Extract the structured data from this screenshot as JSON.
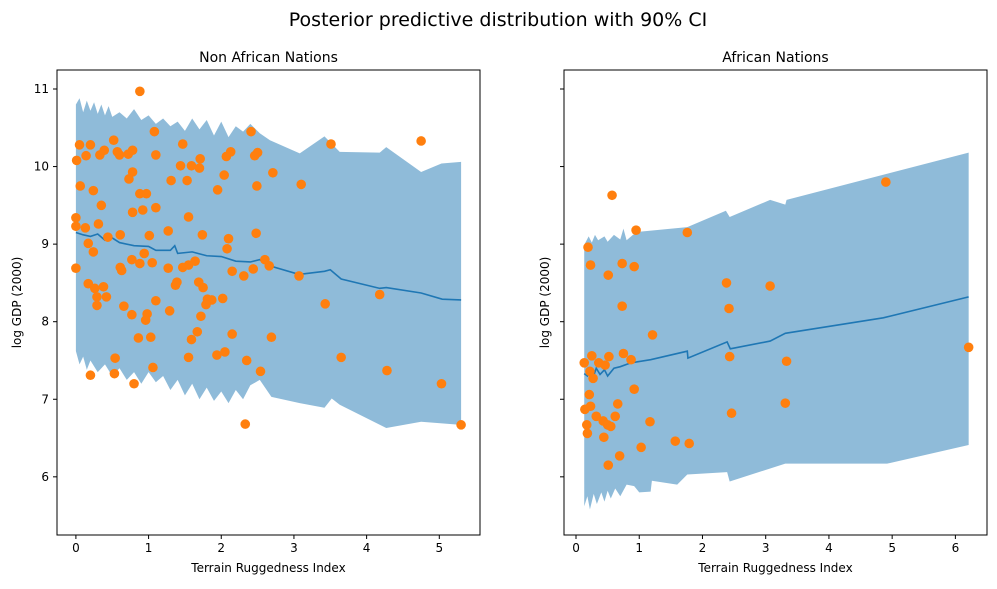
{
  "figure_title": "Posterior predictive distribution with 90% CI",
  "colors": {
    "band": "#1f77b4",
    "band_alpha": 0.5,
    "mean_line": "#1f77b4",
    "points": "#ff7f0e"
  },
  "chart_data": [
    {
      "type": "scatter",
      "title": "Non African Nations",
      "xlabel": "Terrain Ruggedness Index",
      "ylabel": "log GDP (2000)",
      "xlim": [
        -0.26,
        5.56
      ],
      "ylim": [
        5.25,
        11.245
      ],
      "xticks": [
        "0",
        "1",
        "2",
        "3",
        "4",
        "5"
      ],
      "yticks": [
        "6",
        "7",
        "8",
        "9",
        "10",
        "11"
      ],
      "show_ytick_labels": true,
      "points": [
        [
          0.88,
          10.97
        ],
        [
          0.05,
          10.28
        ],
        [
          0.2,
          10.28
        ],
        [
          0.52,
          10.34
        ],
        [
          0.01,
          10.08
        ],
        [
          0.14,
          10.14
        ],
        [
          0.33,
          10.15
        ],
        [
          0.39,
          10.21
        ],
        [
          0.57,
          10.19
        ],
        [
          0.6,
          10.15
        ],
        [
          0.72,
          10.16
        ],
        [
          0.78,
          10.21
        ],
        [
          1.08,
          10.45
        ],
        [
          1.1,
          10.15
        ],
        [
          1.47,
          10.29
        ],
        [
          1.44,
          10.01
        ],
        [
          1.59,
          10.01
        ],
        [
          1.7,
          9.98
        ],
        [
          1.71,
          10.1
        ],
        [
          1.31,
          9.82
        ],
        [
          1.53,
          9.82
        ],
        [
          0.78,
          9.93
        ],
        [
          0.73,
          9.84
        ],
        [
          0.06,
          9.75
        ],
        [
          0.24,
          9.69
        ],
        [
          0.35,
          9.5
        ],
        [
          0.88,
          9.65
        ],
        [
          0.97,
          9.65
        ],
        [
          0.78,
          9.41
        ],
        [
          0.92,
          9.44
        ],
        [
          1.1,
          9.47
        ],
        [
          1.55,
          9.35
        ],
        [
          1.95,
          9.7
        ],
        [
          2.04,
          9.89
        ],
        [
          2.07,
          10.13
        ],
        [
          2.13,
          10.19
        ],
        [
          2.41,
          10.45
        ],
        [
          2.46,
          10.14
        ],
        [
          2.5,
          10.18
        ],
        [
          2.49,
          9.75
        ],
        [
          0.0,
          9.34
        ],
        [
          0.0,
          9.23
        ],
        [
          0.13,
          9.21
        ],
        [
          0.31,
          9.26
        ],
        [
          0.44,
          9.09
        ],
        [
          0.61,
          9.12
        ],
        [
          1.01,
          9.11
        ],
        [
          1.27,
          9.17
        ],
        [
          1.74,
          9.12
        ],
        [
          2.1,
          9.07
        ],
        [
          2.08,
          8.94
        ],
        [
          2.48,
          9.14
        ],
        [
          0.17,
          9.01
        ],
        [
          0.24,
          8.9
        ],
        [
          0.94,
          8.88
        ],
        [
          0.77,
          8.8
        ],
        [
          0.88,
          8.75
        ],
        [
          1.05,
          8.76
        ],
        [
          0.0,
          8.69
        ],
        [
          0.61,
          8.7
        ],
        [
          0.63,
          8.66
        ],
        [
          1.27,
          8.69
        ],
        [
          1.47,
          8.7
        ],
        [
          1.55,
          8.73
        ],
        [
          1.64,
          8.78
        ],
        [
          2.15,
          8.65
        ],
        [
          2.31,
          8.59
        ],
        [
          2.44,
          8.68
        ],
        [
          2.6,
          8.8
        ],
        [
          0.17,
          8.49
        ],
        [
          0.26,
          8.43
        ],
        [
          0.38,
          8.45
        ],
        [
          0.29,
          8.32
        ],
        [
          0.42,
          8.32
        ],
        [
          0.29,
          8.21
        ],
        [
          0.66,
          8.2
        ],
        [
          0.77,
          8.09
        ],
        [
          0.98,
          8.1
        ],
        [
          0.96,
          8.02
        ],
        [
          1.1,
          8.27
        ],
        [
          1.29,
          8.14
        ],
        [
          0.86,
          7.79
        ],
        [
          1.03,
          7.8
        ],
        [
          1.37,
          8.47
        ],
        [
          1.39,
          8.51
        ],
        [
          1.69,
          8.51
        ],
        [
          1.75,
          8.44
        ],
        [
          1.81,
          8.29
        ],
        [
          1.87,
          8.28
        ],
        [
          1.79,
          8.22
        ],
        [
          2.02,
          8.3
        ],
        [
          1.72,
          8.07
        ],
        [
          1.67,
          7.87
        ],
        [
          1.59,
          7.77
        ],
        [
          2.15,
          7.84
        ],
        [
          0.54,
          7.53
        ],
        [
          0.2,
          7.31
        ],
        [
          0.53,
          7.33
        ],
        [
          0.8,
          7.2
        ],
        [
          1.06,
          7.41
        ],
        [
          1.55,
          7.54
        ],
        [
          1.94,
          7.57
        ],
        [
          2.05,
          7.61
        ],
        [
          2.35,
          7.5
        ],
        [
          2.54,
          7.36
        ],
        [
          2.33,
          6.68
        ],
        [
          3.51,
          10.29
        ],
        [
          4.75,
          10.33
        ],
        [
          2.71,
          9.92
        ],
        [
          3.1,
          9.77
        ],
        [
          2.66,
          8.72
        ],
        [
          3.07,
          8.59
        ],
        [
          3.43,
          8.23
        ],
        [
          4.18,
          8.35
        ],
        [
          2.69,
          7.8
        ],
        [
          3.65,
          7.54
        ],
        [
          4.28,
          7.37
        ],
        [
          5.03,
          7.2
        ],
        [
          5.3,
          6.67
        ]
      ],
      "mean": [
        [
          0,
          9.15
        ],
        [
          0.1,
          9.12
        ],
        [
          0.2,
          9.1
        ],
        [
          0.3,
          9.13
        ],
        [
          0.4,
          9.05
        ],
        [
          0.5,
          9.08
        ],
        [
          0.6,
          9.02
        ],
        [
          0.8,
          8.98
        ],
        [
          1.0,
          8.97
        ],
        [
          1.1,
          8.92
        ],
        [
          1.3,
          8.92
        ],
        [
          1.36,
          8.98
        ],
        [
          1.4,
          8.88
        ],
        [
          1.6,
          8.9
        ],
        [
          1.8,
          8.85
        ],
        [
          2.0,
          8.84
        ],
        [
          2.2,
          8.78
        ],
        [
          2.4,
          8.77
        ],
        [
          2.53,
          8.8
        ],
        [
          2.67,
          8.72
        ],
        [
          3.07,
          8.61
        ],
        [
          3.42,
          8.65
        ],
        [
          3.5,
          8.67
        ],
        [
          3.65,
          8.55
        ],
        [
          4.18,
          8.43
        ],
        [
          4.27,
          8.44
        ],
        [
          4.75,
          8.37
        ],
        [
          5.04,
          8.29
        ],
        [
          5.3,
          8.28
        ]
      ],
      "ci_upper": [
        [
          0,
          10.8
        ],
        [
          0.05,
          10.88
        ],
        [
          0.1,
          10.7
        ],
        [
          0.15,
          10.85
        ],
        [
          0.2,
          10.72
        ],
        [
          0.25,
          10.83
        ],
        [
          0.3,
          10.68
        ],
        [
          0.35,
          10.8
        ],
        [
          0.4,
          10.66
        ],
        [
          0.45,
          10.78
        ],
        [
          0.5,
          10.64
        ],
        [
          0.6,
          10.7
        ],
        [
          0.7,
          10.62
        ],
        [
          0.8,
          10.74
        ],
        [
          0.9,
          10.6
        ],
        [
          1.0,
          10.66
        ],
        [
          1.1,
          10.55
        ],
        [
          1.2,
          10.62
        ],
        [
          1.3,
          10.52
        ],
        [
          1.4,
          10.58
        ],
        [
          1.5,
          10.46
        ],
        [
          1.6,
          10.62
        ],
        [
          1.7,
          10.48
        ],
        [
          1.8,
          10.6
        ],
        [
          1.9,
          10.4
        ],
        [
          2.0,
          10.58
        ],
        [
          2.1,
          10.38
        ],
        [
          2.2,
          10.52
        ],
        [
          2.3,
          10.45
        ],
        [
          2.4,
          10.55
        ],
        [
          2.53,
          10.43
        ],
        [
          2.67,
          10.34
        ],
        [
          3.08,
          10.17
        ],
        [
          3.42,
          10.39
        ],
        [
          3.63,
          10.19
        ],
        [
          4.18,
          10.18
        ],
        [
          4.27,
          10.25
        ],
        [
          4.75,
          9.93
        ],
        [
          5.03,
          10.04
        ],
        [
          5.3,
          10.06
        ]
      ],
      "ci_lower": [
        [
          0,
          7.62
        ],
        [
          0.05,
          7.45
        ],
        [
          0.1,
          7.55
        ],
        [
          0.15,
          7.38
        ],
        [
          0.2,
          7.5
        ],
        [
          0.3,
          7.35
        ],
        [
          0.4,
          7.45
        ],
        [
          0.5,
          7.3
        ],
        [
          0.6,
          7.4
        ],
        [
          0.7,
          7.25
        ],
        [
          0.8,
          7.35
        ],
        [
          0.9,
          7.2
        ],
        [
          1.0,
          7.35
        ],
        [
          1.1,
          7.22
        ],
        [
          1.2,
          7.3
        ],
        [
          1.3,
          7.12
        ],
        [
          1.4,
          7.25
        ],
        [
          1.5,
          7.05
        ],
        [
          1.6,
          7.2
        ],
        [
          1.7,
          7.0
        ],
        [
          1.8,
          7.15
        ],
        [
          1.9,
          6.98
        ],
        [
          2.0,
          7.1
        ],
        [
          2.1,
          6.95
        ],
        [
          2.2,
          7.12
        ],
        [
          2.3,
          7.0
        ],
        [
          2.4,
          7.18
        ],
        [
          2.53,
          7.25
        ],
        [
          2.69,
          7.03
        ],
        [
          3.08,
          6.95
        ],
        [
          3.42,
          6.89
        ],
        [
          3.52,
          7.01
        ],
        [
          3.63,
          6.93
        ],
        [
          4.27,
          6.63
        ],
        [
          4.75,
          6.71
        ],
        [
          5.3,
          6.67
        ]
      ]
    },
    {
      "type": "scatter",
      "title": "African Nations",
      "xlabel": "Terrain Ruggedness Index",
      "ylabel": "log GDP (2000)",
      "xlim": [
        -0.19,
        6.5
      ],
      "ylim": [
        5.25,
        11.245
      ],
      "xticks": [
        "0",
        "1",
        "2",
        "3",
        "4",
        "5",
        "6"
      ],
      "yticks": [
        "6",
        "7",
        "8",
        "9",
        "10",
        "11"
      ],
      "show_ytick_labels": false,
      "points": [
        [
          0.57,
          9.63
        ],
        [
          0.95,
          9.18
        ],
        [
          0.19,
          8.96
        ],
        [
          1.76,
          9.15
        ],
        [
          0.23,
          8.73
        ],
        [
          0.73,
          8.75
        ],
        [
          0.92,
          8.71
        ],
        [
          0.51,
          8.6
        ],
        [
          2.38,
          8.5
        ],
        [
          0.73,
          8.2
        ],
        [
          2.42,
          8.17
        ],
        [
          1.21,
          7.83
        ],
        [
          0.25,
          7.56
        ],
        [
          0.13,
          7.47
        ],
        [
          0.36,
          7.47
        ],
        [
          0.46,
          7.44
        ],
        [
          0.52,
          7.55
        ],
        [
          0.75,
          7.59
        ],
        [
          0.87,
          7.51
        ],
        [
          0.22,
          7.36
        ],
        [
          0.27,
          7.27
        ],
        [
          2.43,
          7.55
        ],
        [
          0.92,
          7.13
        ],
        [
          0.21,
          7.06
        ],
        [
          0.14,
          6.87
        ],
        [
          0.23,
          6.91
        ],
        [
          0.66,
          6.94
        ],
        [
          0.32,
          6.78
        ],
        [
          0.43,
          6.72
        ],
        [
          0.5,
          6.67
        ],
        [
          0.55,
          6.65
        ],
        [
          0.62,
          6.78
        ],
        [
          0.17,
          6.67
        ],
        [
          0.18,
          6.56
        ],
        [
          1.17,
          6.71
        ],
        [
          0.44,
          6.51
        ],
        [
          1.03,
          6.38
        ],
        [
          1.57,
          6.46
        ],
        [
          1.79,
          6.43
        ],
        [
          0.69,
          6.27
        ],
        [
          0.51,
          6.15
        ],
        [
          2.46,
          6.82
        ],
        [
          3.07,
          8.46
        ],
        [
          3.33,
          7.49
        ],
        [
          3.31,
          6.95
        ],
        [
          4.9,
          9.8
        ],
        [
          6.21,
          7.67
        ]
      ],
      "mean": [
        [
          0.13,
          7.33
        ],
        [
          0.18,
          7.3
        ],
        [
          0.22,
          7.38
        ],
        [
          0.27,
          7.28
        ],
        [
          0.32,
          7.4
        ],
        [
          0.38,
          7.32
        ],
        [
          0.45,
          7.38
        ],
        [
          0.5,
          7.3
        ],
        [
          0.6,
          7.4
        ],
        [
          0.7,
          7.42
        ],
        [
          0.87,
          7.47
        ],
        [
          1.18,
          7.51
        ],
        [
          1.76,
          7.62
        ],
        [
          1.77,
          7.53
        ],
        [
          2.39,
          7.74
        ],
        [
          2.44,
          7.65
        ],
        [
          3.07,
          7.75
        ],
        [
          3.31,
          7.85
        ],
        [
          4.86,
          8.05
        ],
        [
          6.21,
          8.32
        ]
      ],
      "ci_upper": [
        [
          0.13,
          8.99
        ],
        [
          0.2,
          9.1
        ],
        [
          0.25,
          9.02
        ],
        [
          0.3,
          9.12
        ],
        [
          0.35,
          9.05
        ],
        [
          0.45,
          9.1
        ],
        [
          0.5,
          9.03
        ],
        [
          0.6,
          9.12
        ],
        [
          0.7,
          9.06
        ],
        [
          0.75,
          9.2
        ],
        [
          0.8,
          9.05
        ],
        [
          0.9,
          9.12
        ],
        [
          1.0,
          9.16
        ],
        [
          1.76,
          9.22
        ],
        [
          2.37,
          9.43
        ],
        [
          2.43,
          9.35
        ],
        [
          3.07,
          9.57
        ],
        [
          3.31,
          9.51
        ],
        [
          3.33,
          9.57
        ],
        [
          6.21,
          10.18
        ]
      ],
      "ci_lower": [
        [
          0.13,
          5.62
        ],
        [
          0.18,
          5.75
        ],
        [
          0.22,
          5.58
        ],
        [
          0.28,
          5.78
        ],
        [
          0.33,
          5.65
        ],
        [
          0.4,
          5.8
        ],
        [
          0.45,
          5.68
        ],
        [
          0.5,
          5.82
        ],
        [
          0.55,
          5.72
        ],
        [
          0.62,
          5.85
        ],
        [
          0.7,
          5.75
        ],
        [
          0.8,
          5.9
        ],
        [
          0.92,
          5.88
        ],
        [
          1.0,
          5.8
        ],
        [
          1.18,
          5.81
        ],
        [
          1.2,
          5.95
        ],
        [
          1.6,
          5.9
        ],
        [
          1.76,
          6.03
        ],
        [
          2.39,
          6.06
        ],
        [
          2.43,
          5.94
        ],
        [
          3.31,
          6.17
        ],
        [
          4.92,
          6.17
        ],
        [
          6.21,
          6.41
        ]
      ]
    }
  ]
}
